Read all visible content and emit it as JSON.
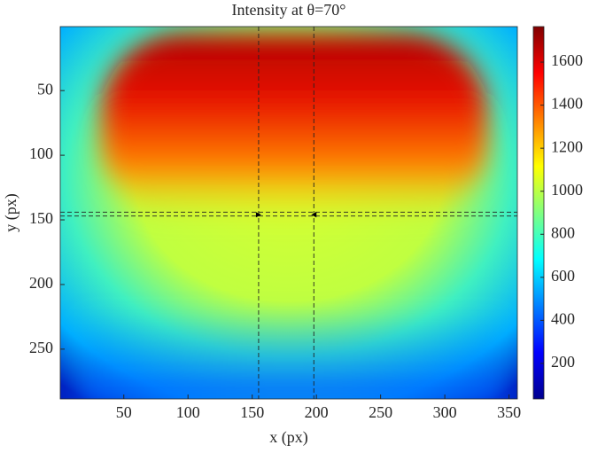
{
  "chart_data": {
    "type": "heatmap",
    "title": "Intensity at θ=70°",
    "xlabel": "x (px)",
    "ylabel": "y (px)",
    "xlim": [
      0.5,
      356.5
    ],
    "xticks": [
      50,
      100,
      150,
      200,
      250,
      300,
      350
    ],
    "ylim": [
      0.5,
      288.5
    ],
    "yticks": [
      50,
      100,
      150,
      200,
      250
    ],
    "y_reversed": true,
    "colormap": "jet",
    "clim": [
      35,
      1765
    ],
    "cticks": [
      200,
      400,
      600,
      800,
      1000,
      1200,
      1400,
      1600
    ],
    "guides": {
      "vlines": [
        155,
        198
      ],
      "hlines": [
        144,
        147
      ],
      "style": "dashed",
      "color": "#222222",
      "markers": {
        "x": [
          155,
          198
        ],
        "y": [
          146,
          146
        ],
        "color": "#000000"
      }
    }
  }
}
